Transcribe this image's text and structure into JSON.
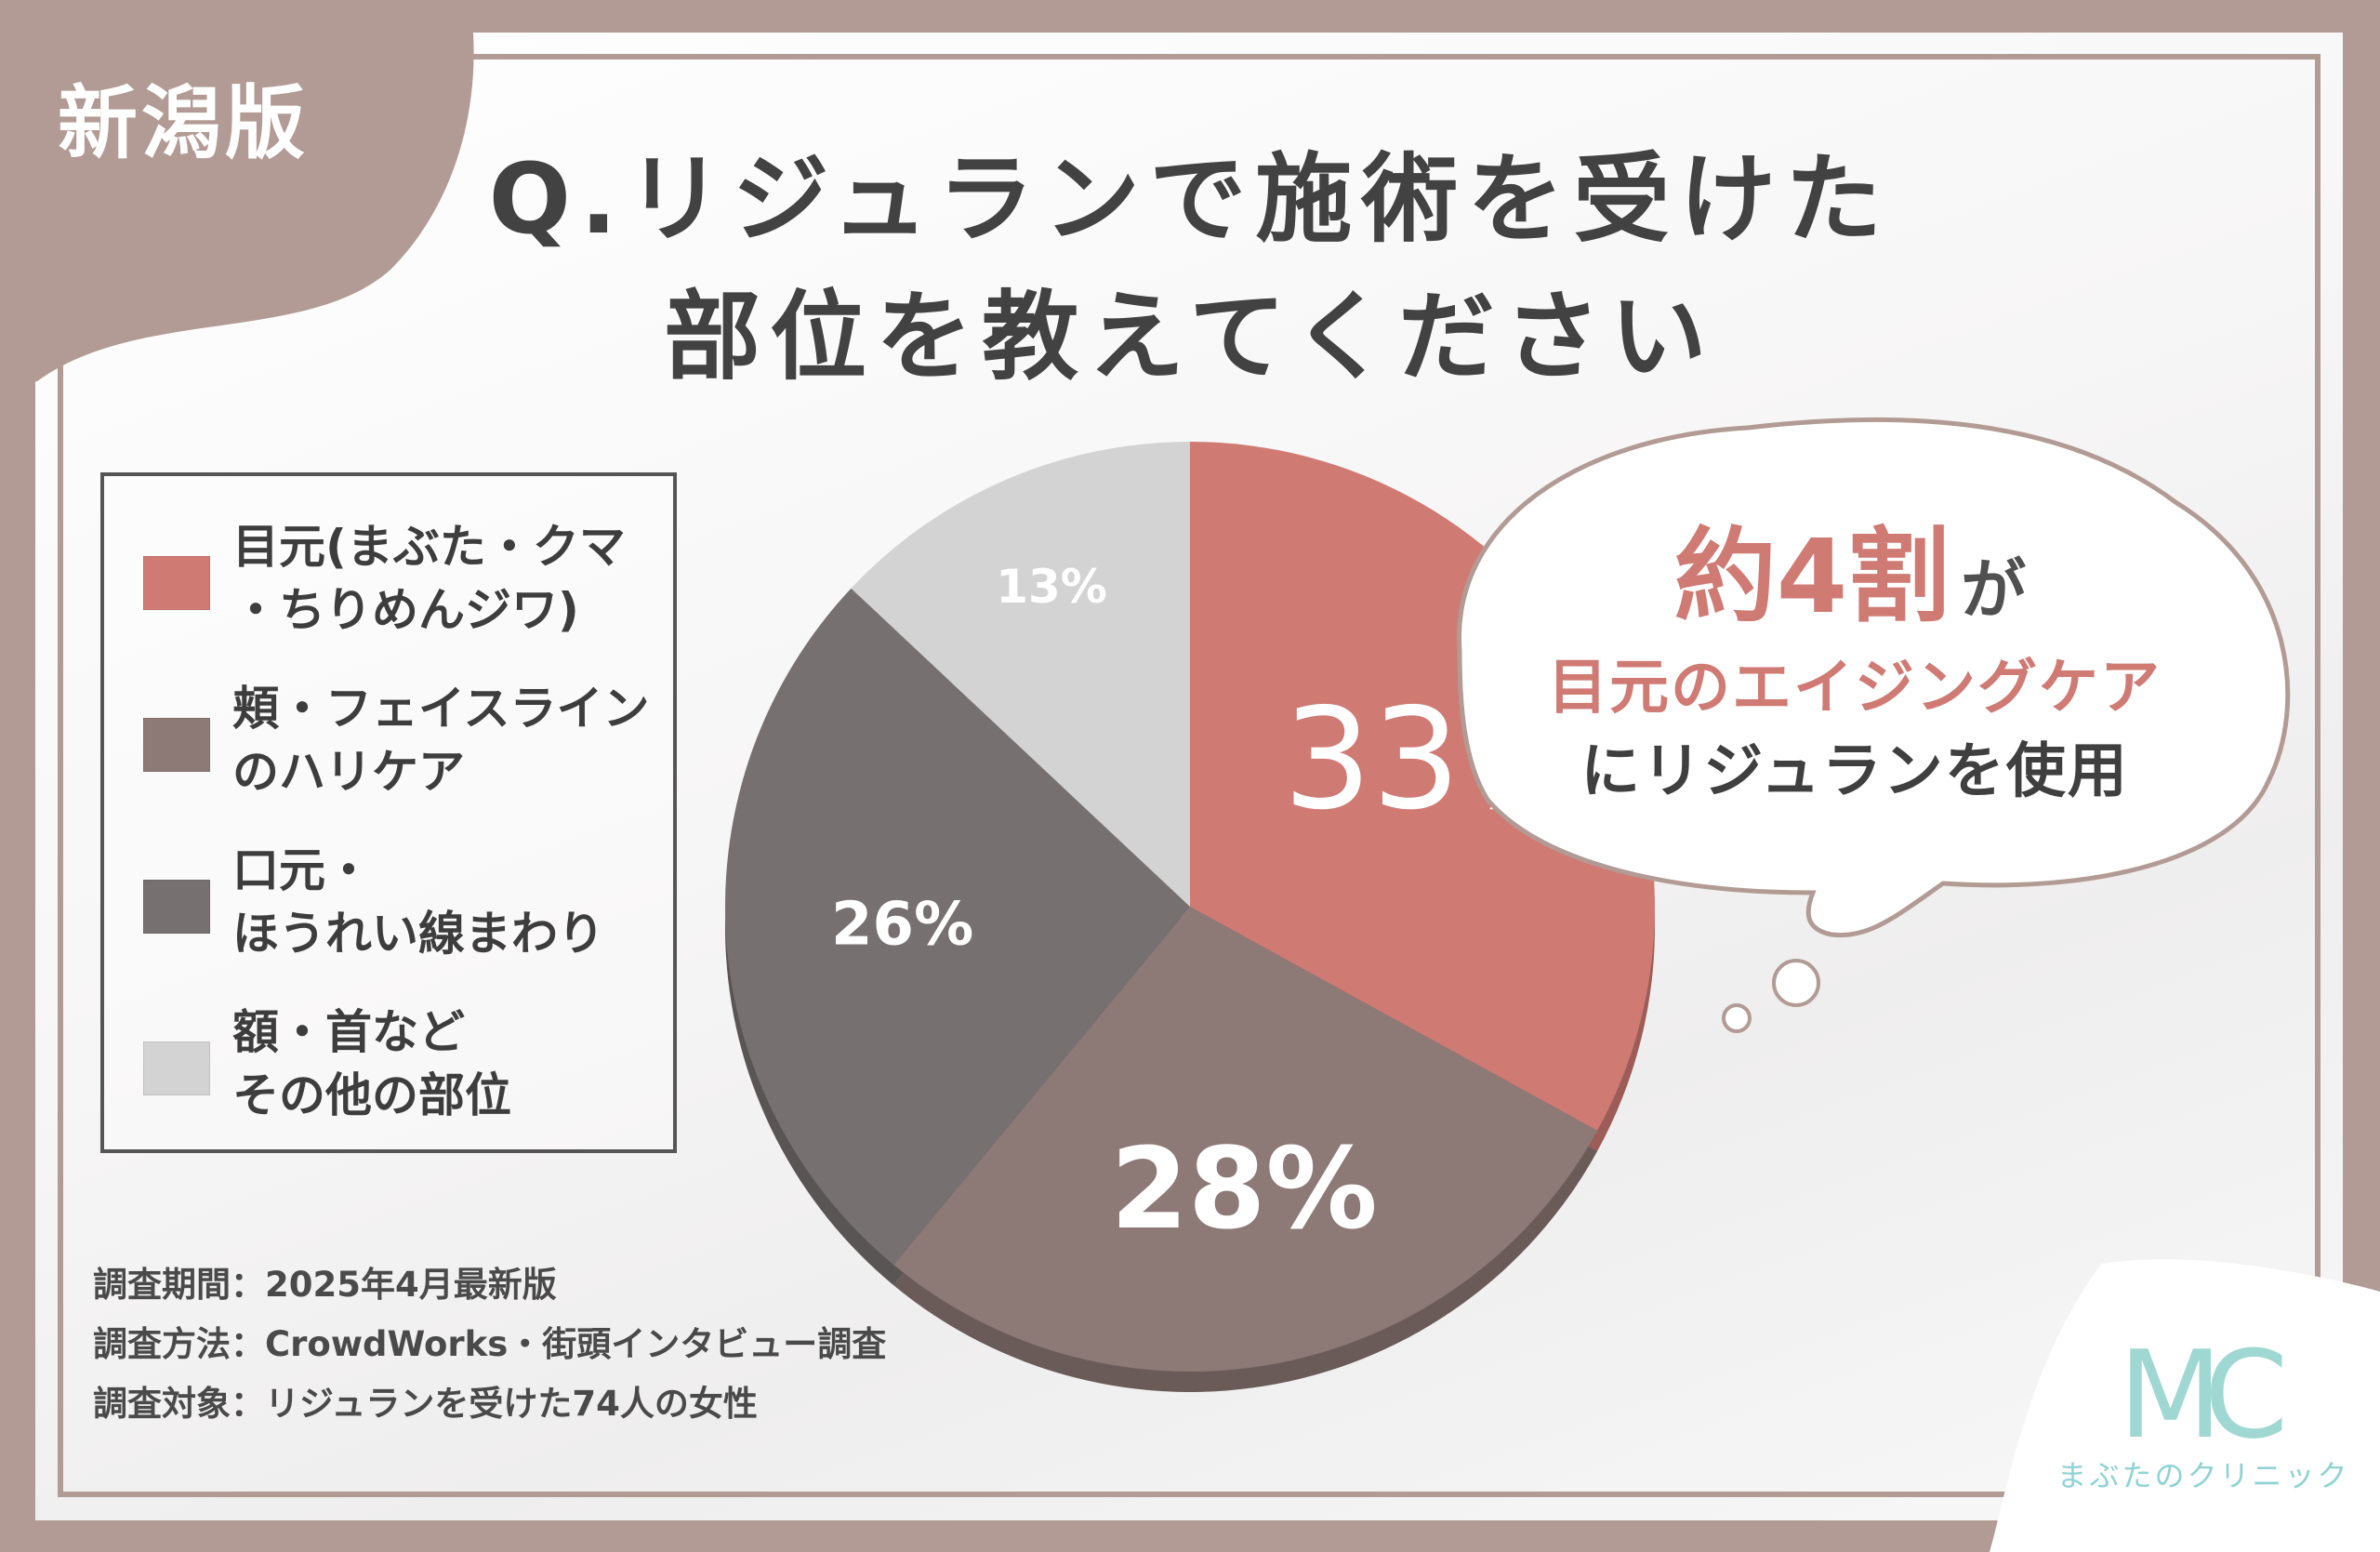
{
  "region_tag": "新潟版",
  "title": {
    "line1": "Q.リジュランで施術を受けた",
    "line2": "部位を教えてください"
  },
  "legend": [
    {
      "label": "目元(まぶた・クマ\n・ちりめんジワ)",
      "color": "#d07a74"
    },
    {
      "label": "頬・フェイスライン\nのハリケア",
      "color": "#8d7976"
    },
    {
      "label": "口元・\nほうれい線まわり",
      "color": "#767170"
    },
    {
      "label": "額・首など\nその他の部位",
      "color": "#d3d3d3"
    }
  ],
  "survey": {
    "period": "調査期間：2025年4月最新版",
    "method": "調査方法：CrowdWorks・街頭インタビュー調査",
    "target": "調査対象：リジュランを受けた74人の女性"
  },
  "callout": {
    "line1_main": "約4割",
    "line1_suffix": "が",
    "line2": "目元のエイジングケア",
    "line3": "にリジュランを使用"
  },
  "logo": {
    "mark": "MC",
    "name": "まぶたのクリニック"
  },
  "chart_data": {
    "type": "pie",
    "title": "Q.リジュランで施術を受けた部位を教えてください",
    "categories": [
      "目元(まぶた・クマ・ちりめんジワ)",
      "頬・フェイスラインのハリケア",
      "口元・ほうれい線まわり",
      "額・首などその他の部位"
    ],
    "values": [
      33,
      28,
      26,
      13
    ],
    "value_labels": [
      "33%",
      "28%",
      "26%",
      "13%"
    ],
    "colors": [
      "#d07a74",
      "#8d7976",
      "#767170",
      "#d3d3d3"
    ],
    "unit": "%",
    "legend": "left"
  }
}
